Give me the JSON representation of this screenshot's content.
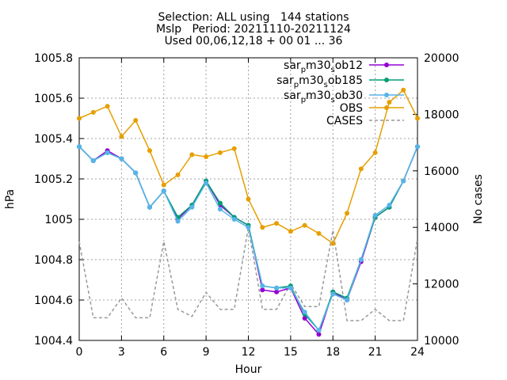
{
  "chart_data": {
    "type": "line",
    "title_lines": [
      "Selection: ALL using   144 stations",
      "Mslp   Period: 20211110-20211124",
      "Used 00,06,12,18 + 00 01 ... 36"
    ],
    "xlabel": "Hour",
    "ylabel": "hPa",
    "y2label": "No cases",
    "xlim": [
      0,
      24
    ],
    "ylim": [
      1004.4,
      1005.8
    ],
    "y2lim": [
      10000,
      20000
    ],
    "x_ticks": [
      0,
      3,
      6,
      9,
      12,
      15,
      18,
      21,
      24
    ],
    "y_ticks": [
      "1004.4",
      "1004.6",
      "1004.8",
      "1005",
      "1005.2",
      "1005.4",
      "1005.6",
      "1005.8"
    ],
    "y2_ticks": [
      "10000",
      "12000",
      "14000",
      "16000",
      "18000",
      "20000"
    ],
    "grid": true,
    "legend_position": "top-right",
    "x": [
      0,
      1,
      2,
      3,
      4,
      5,
      6,
      7,
      8,
      9,
      10,
      11,
      12,
      13,
      14,
      15,
      16,
      17,
      18,
      19,
      20,
      21,
      22,
      23,
      24
    ],
    "series": [
      {
        "name_parts": [
          "sar",
          "p",
          "m30",
          "s",
          "ob12"
        ],
        "color": "#9400d3",
        "marker": "circle",
        "axis": "y1",
        "values": [
          1005.36,
          1005.29,
          1005.34,
          1005.3,
          1005.23,
          1005.06,
          1005.14,
          1005.0,
          1005.07,
          1005.19,
          1005.07,
          1005.01,
          1004.97,
          1004.65,
          1004.64,
          1004.66,
          1004.51,
          1004.43,
          1004.64,
          1004.6,
          1004.79,
          1005.01,
          1005.06,
          1005.19,
          1005.36
        ]
      },
      {
        "name_parts": [
          "sar",
          "p",
          "m30",
          "s",
          "ob185"
        ],
        "color": "#009e73",
        "marker": "circle",
        "axis": "y1",
        "values": [
          1005.36,
          1005.29,
          1005.33,
          1005.3,
          1005.23,
          1005.06,
          1005.14,
          1005.01,
          1005.07,
          1005.19,
          1005.08,
          1005.01,
          1004.97,
          1004.67,
          1004.66,
          1004.67,
          1004.53,
          1004.45,
          1004.64,
          1004.61,
          1004.8,
          1005.01,
          1005.06,
          1005.19,
          1005.36
        ]
      },
      {
        "name_parts": [
          "sar",
          "p",
          "m30",
          "s",
          "ob30"
        ],
        "color": "#56b4e9",
        "marker": "circle",
        "axis": "y1",
        "values": [
          1005.36,
          1005.29,
          1005.33,
          1005.3,
          1005.23,
          1005.06,
          1005.14,
          1004.99,
          1005.06,
          1005.18,
          1005.05,
          1005.0,
          1004.96,
          1004.67,
          1004.66,
          1004.66,
          1004.54,
          1004.45,
          1004.63,
          1004.6,
          1004.8,
          1005.02,
          1005.07,
          1005.19,
          1005.36
        ]
      },
      {
        "name": "OBS",
        "color": "#e69f00",
        "marker": "circle",
        "axis": "y1",
        "values": [
          1005.5,
          1005.53,
          1005.56,
          1005.41,
          1005.49,
          1005.34,
          1005.17,
          1005.22,
          1005.32,
          1005.31,
          1005.33,
          1005.35,
          1005.1,
          1004.96,
          1004.98,
          1004.94,
          1004.97,
          1004.93,
          1004.88,
          1005.03,
          1005.25,
          1005.33,
          1005.58,
          1005.64,
          1005.5
        ]
      },
      {
        "name": "CASES",
        "color": "#999999",
        "marker": "none",
        "dash": true,
        "axis": "y2",
        "values": [
          13500,
          10800,
          10800,
          11500,
          10800,
          10800,
          13500,
          11100,
          10850,
          11700,
          11100,
          11100,
          14000,
          11100,
          11100,
          12000,
          11200,
          11200,
          13900,
          10700,
          10700,
          11100,
          10700,
          10700,
          13600
        ]
      }
    ]
  }
}
